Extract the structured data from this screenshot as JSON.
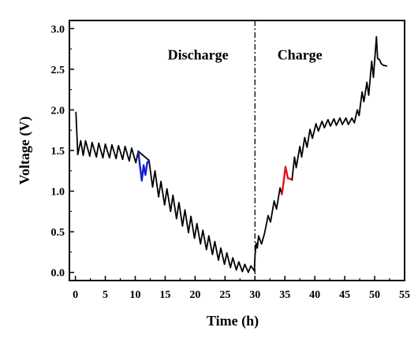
{
  "chart_data": {
    "type": "line",
    "title": "",
    "xlabel": "Time (h)",
    "ylabel": "Voltage (V)",
    "xlim": [
      -1,
      55
    ],
    "ylim": [
      -0.1,
      3.1
    ],
    "xticks": [
      0,
      5,
      10,
      15,
      20,
      25,
      30,
      35,
      40,
      45,
      50,
      55
    ],
    "yticks": [
      0.0,
      0.5,
      1.0,
      1.5,
      2.0,
      2.5,
      3.0
    ],
    "xtick_labels": [
      "0",
      "5",
      "10",
      "15",
      "20",
      "25",
      "30",
      "35",
      "40",
      "45",
      "50",
      "55"
    ],
    "ytick_labels": [
      "0.0",
      "0.5",
      "1.0",
      "1.5",
      "2.0",
      "2.5",
      "3.0"
    ],
    "grid": false,
    "annotations": [
      {
        "text": "Discharge",
        "x": 20.5,
        "y": 2.62
      },
      {
        "text": "Charge",
        "x": 37.5,
        "y": 2.62
      }
    ],
    "divider_x": 30.0,
    "series": [
      {
        "color": "#000000",
        "x": [
          0.1,
          0.4,
          0.9,
          1.3,
          1.7,
          1.7,
          2.4,
          2.8,
          2.8,
          3.5,
          3.9,
          3.9,
          4.6,
          5.0,
          5.0,
          5.7,
          6.1,
          6.1,
          6.8,
          7.2,
          7.2,
          7.9,
          8.3,
          8.3,
          9.0,
          9.4,
          9.4,
          10.1,
          10.5,
          10.5,
          12.3,
          12.3,
          12.9,
          13.3,
          13.3,
          13.9,
          14.3,
          14.3,
          14.9,
          15.3,
          15.3,
          15.9,
          16.3,
          16.3,
          16.9,
          17.3,
          17.3,
          17.9,
          18.3,
          18.3,
          18.9,
          19.3,
          19.3,
          19.9,
          20.3,
          20.3,
          20.9,
          21.3,
          21.3,
          21.9,
          22.3,
          22.3,
          22.9,
          23.3,
          23.3,
          23.9,
          24.3,
          24.3,
          24.9,
          25.3,
          25.3,
          25.9,
          26.3,
          26.3,
          26.9,
          27.3,
          27.3,
          27.9,
          28.3,
          28.3,
          28.9,
          29.3,
          29.3,
          29.9,
          30.0,
          30.2,
          30.4,
          30.6,
          31.1,
          31.6,
          31.6,
          32.2,
          32.6,
          32.6,
          33.2,
          33.6,
          33.6,
          34.2,
          34.5
        ],
        "y": [
          1.97,
          1.45,
          1.62,
          1.44,
          1.62,
          1.62,
          1.43,
          1.6,
          1.6,
          1.42,
          1.59,
          1.59,
          1.41,
          1.58,
          1.58,
          1.41,
          1.57,
          1.57,
          1.4,
          1.56,
          1.56,
          1.39,
          1.55,
          1.55,
          1.37,
          1.53,
          1.53,
          1.35,
          1.49,
          1.49,
          1.38,
          1.38,
          1.05,
          1.25,
          1.25,
          0.93,
          1.12,
          1.12,
          0.83,
          1.03,
          1.03,
          0.75,
          0.95,
          0.95,
          0.66,
          0.86,
          0.86,
          0.57,
          0.77,
          0.77,
          0.49,
          0.69,
          0.69,
          0.42,
          0.6,
          0.6,
          0.35,
          0.52,
          0.52,
          0.28,
          0.45,
          0.45,
          0.22,
          0.38,
          0.38,
          0.15,
          0.3,
          0.3,
          0.1,
          0.24,
          0.24,
          0.06,
          0.18,
          0.18,
          0.03,
          0.13,
          0.13,
          0.01,
          0.1,
          0.1,
          0.0,
          0.08,
          0.08,
          0.02,
          0.2,
          0.36,
          0.3,
          0.45,
          0.35,
          0.48,
          0.48,
          0.7,
          0.62,
          0.62,
          0.88,
          0.78,
          0.78,
          1.04,
          0.96
        ]
      },
      {
        "color": "#1520d0",
        "x": [
          10.5,
          10.8,
          11.1,
          11.4,
          11.7,
          12.0,
          12.3
        ],
        "y": [
          1.49,
          1.3,
          1.13,
          1.32,
          1.2,
          1.35,
          1.38
        ]
      },
      {
        "color": "#e8101c",
        "x": [
          34.5,
          34.8,
          35.1,
          35.5,
          35.9,
          36.2
        ],
        "y": [
          0.96,
          1.12,
          1.3,
          1.16,
          1.15,
          1.14
        ]
      },
      {
        "color": "#000000",
        "x": [
          36.2,
          36.6,
          36.9,
          36.9,
          37.5,
          37.8,
          37.8,
          38.3,
          38.7,
          38.7,
          39.2,
          39.6,
          39.6,
          40.2,
          40.6,
          40.6,
          41.2,
          41.6,
          41.6,
          42.2,
          42.6,
          42.6,
          43.2,
          43.6,
          43.6,
          44.2,
          44.6,
          44.6,
          45.2,
          45.6,
          45.6,
          46.2,
          46.6,
          46.6,
          47.1,
          47.4,
          47.4,
          47.9,
          48.2,
          48.2,
          48.7,
          49.0,
          49.0,
          49.5,
          49.8,
          49.8,
          50.3,
          50.5,
          50.8,
          51.1,
          51.4,
          52.0
        ],
        "y": [
          1.14,
          1.42,
          1.29,
          1.29,
          1.55,
          1.42,
          1.42,
          1.66,
          1.54,
          1.54,
          1.76,
          1.65,
          1.65,
          1.83,
          1.74,
          1.74,
          1.86,
          1.78,
          1.78,
          1.88,
          1.8,
          1.8,
          1.89,
          1.81,
          1.81,
          1.9,
          1.82,
          1.82,
          1.9,
          1.82,
          1.82,
          1.9,
          1.84,
          1.84,
          2.0,
          1.93,
          1.93,
          2.22,
          2.1,
          2.1,
          2.34,
          2.18,
          2.18,
          2.6,
          2.4,
          2.4,
          2.9,
          2.63,
          2.62,
          2.57,
          2.55,
          2.54
        ]
      }
    ]
  }
}
